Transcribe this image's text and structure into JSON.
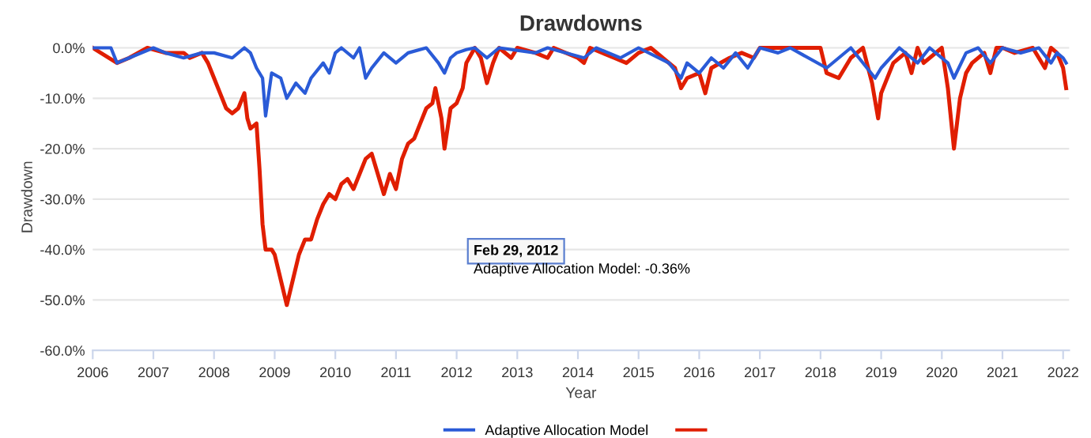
{
  "chart_data": {
    "type": "line",
    "title": "Drawdowns",
    "xlabel": "Year",
    "ylabel": "Drawdown",
    "xlim": [
      2006,
      2022.1
    ],
    "xticks": [
      2006,
      2007,
      2008,
      2009,
      2010,
      2011,
      2012,
      2013,
      2014,
      2015,
      2016,
      2017,
      2018,
      2019,
      2020,
      2021,
      2022
    ],
    "ylim": [
      -60,
      0.8
    ],
    "yticks": [
      {
        "value": 0,
        "label": "0.0%"
      },
      {
        "value": -10,
        "label": "-10.0%"
      },
      {
        "value": -20,
        "label": "-20.0%"
      },
      {
        "value": -30,
        "label": "-30.0%"
      },
      {
        "value": -40,
        "label": "-40.0%"
      },
      {
        "value": -50,
        "label": "-50.0%"
      },
      {
        "value": -60,
        "label": "-60.0%"
      }
    ],
    "grid": "y",
    "legend": "bottom",
    "marker": "none",
    "line_style": "solid",
    "annotations": [
      "Feb 29, 2012",
      "Adaptive Allocation Model: -0.36%"
    ],
    "series": [
      {
        "name": "Adaptive Allocation Model",
        "color": "#2a5bd7",
        "x": [
          2006,
          2006.3,
          2006.4,
          2006.6,
          2007.0,
          2007.2,
          2007.5,
          2007.8,
          2008.0,
          2008.3,
          2008.5,
          2008.6,
          2008.7,
          2008.8,
          2008.85,
          2008.95,
          2009.1,
          2009.2,
          2009.35,
          2009.5,
          2009.6,
          2009.8,
          2009.9,
          2010.0,
          2010.1,
          2010.3,
          2010.4,
          2010.5,
          2010.6,
          2010.8,
          2011.0,
          2011.2,
          2011.5,
          2011.7,
          2011.8,
          2011.9,
          2012.0,
          2012.16,
          2012.3,
          2012.5,
          2012.7,
          2013.3,
          2013.5,
          2014.1,
          2014.3,
          2014.7,
          2015.0,
          2015.5,
          2015.7,
          2015.8,
          2016.0,
          2016.2,
          2016.4,
          2016.6,
          2016.8,
          2017.0,
          2017.3,
          2017.5,
          2018.1,
          2018.3,
          2018.5,
          2018.9,
          2019.0,
          2019.3,
          2019.6,
          2019.8,
          2020.1,
          2020.2,
          2020.4,
          2020.6,
          2020.8,
          2021.0,
          2021.3,
          2021.6,
          2021.8,
          2021.9,
          2022.0,
          2022.05
        ],
        "values": [
          0,
          0,
          -3,
          -2,
          0,
          -1,
          -2,
          -1,
          -1,
          -2,
          0,
          -1,
          -4,
          -6,
          -13.5,
          -5,
          -6,
          -10,
          -7,
          -9,
          -6,
          -3,
          -5,
          -1,
          0,
          -2,
          0,
          -6,
          -4,
          -1,
          -3,
          -1,
          0,
          -3,
          -5,
          -2,
          -1,
          -0.36,
          0,
          -2,
          0,
          -1,
          0,
          -2,
          0,
          -2,
          0,
          -3,
          -6,
          -3,
          -5,
          -2,
          -4,
          -1,
          -4,
          0,
          -1,
          0,
          -4,
          -2,
          0,
          -6,
          -4,
          0,
          -3,
          0,
          -3,
          -6,
          -1,
          0,
          -3,
          0,
          -1,
          0,
          -3,
          -1,
          -2,
          -3
        ]
      },
      {
        "color": "#e01e00",
        "x": [
          2006.0,
          2006.4,
          2006.6,
          2006.9,
          2007.2,
          2007.5,
          2007.6,
          2007.8,
          2007.9,
          2008.0,
          2008.1,
          2008.2,
          2008.3,
          2008.4,
          2008.5,
          2008.55,
          2008.6,
          2008.7,
          2008.75,
          2008.8,
          2008.85,
          2008.95,
          2009.0,
          2009.1,
          2009.2,
          2009.3,
          2009.4,
          2009.5,
          2009.6,
          2009.7,
          2009.8,
          2009.9,
          2010.0,
          2010.1,
          2010.2,
          2010.3,
          2010.4,
          2010.5,
          2010.6,
          2010.7,
          2010.8,
          2010.9,
          2011.0,
          2011.1,
          2011.2,
          2011.3,
          2011.4,
          2011.5,
          2011.6,
          2011.65,
          2011.75,
          2011.8,
          2011.9,
          2012.0,
          2012.1,
          2012.16,
          2012.3,
          2012.4,
          2012.5,
          2012.6,
          2012.7,
          2012.9,
          2013.0,
          2013.3,
          2013.5,
          2013.6,
          2014.0,
          2014.1,
          2014.2,
          2014.6,
          2014.8,
          2015.0,
          2015.2,
          2015.6,
          2015.7,
          2015.8,
          2016.0,
          2016.1,
          2016.2,
          2016.5,
          2016.7,
          2016.9,
          2017.0,
          2017.5,
          2018.0,
          2018.1,
          2018.3,
          2018.5,
          2018.7,
          2018.85,
          2018.95,
          2019.0,
          2019.2,
          2019.4,
          2019.5,
          2019.6,
          2019.7,
          2020.0,
          2020.1,
          2020.2,
          2020.3,
          2020.4,
          2020.5,
          2020.7,
          2020.8,
          2020.9,
          2021.0,
          2021.2,
          2021.5,
          2021.7,
          2021.8,
          2021.9,
          2022.0,
          2022.05
        ],
        "values": [
          0,
          -3,
          -2,
          0,
          -1,
          -1,
          -2,
          -1,
          -3,
          -6,
          -9,
          -12,
          -13,
          -12,
          -9,
          -14,
          -16,
          -15,
          -24,
          -35,
          -40,
          -40,
          -41,
          -46,
          -51,
          -46,
          -41,
          -38,
          -38,
          -34,
          -31,
          -29,
          -30,
          -27,
          -26,
          -28,
          -25,
          -22,
          -21,
          -25,
          -29,
          -25,
          -28,
          -22,
          -19,
          -18,
          -15,
          -12,
          -11,
          -8,
          -14,
          -20,
          -12,
          -11,
          -8,
          -3,
          0,
          -2,
          -7,
          -3,
          0,
          -2,
          0,
          -1,
          -2,
          0,
          -2,
          -3,
          0,
          -2,
          -3,
          -1,
          0,
          -4,
          -8,
          -6,
          -5,
          -9,
          -4,
          -2,
          -1,
          -2,
          0,
          0,
          0,
          -5,
          -6,
          -2,
          0,
          -7,
          -14,
          -9,
          -3,
          -1,
          -5,
          0,
          -3,
          0,
          -8,
          -20,
          -10,
          -5,
          -3,
          -1,
          -5,
          0,
          0,
          -1,
          0,
          -4,
          0,
          -1,
          -4,
          -8
        ]
      }
    ]
  }
}
